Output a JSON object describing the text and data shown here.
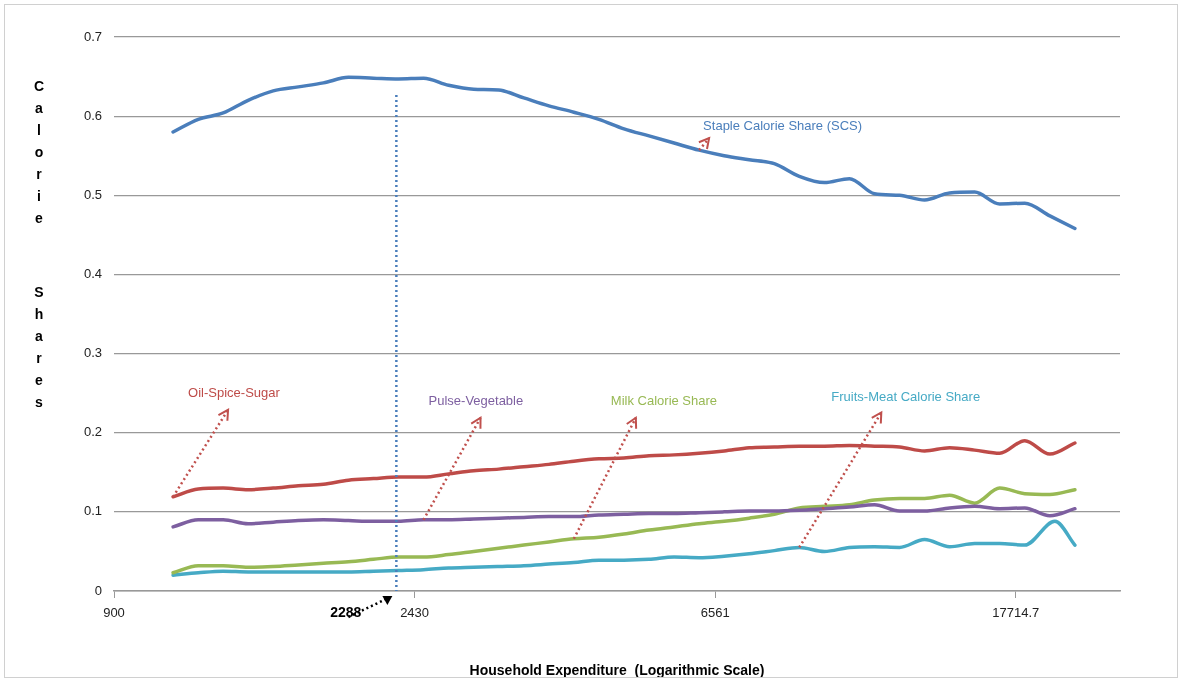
{
  "chart_data": {
    "type": "line",
    "xlabel": "Household Expenditure  (Logarithmic Scale)",
    "ylabel": "Calorie Shares",
    "log": "x",
    "xlim": [
      900,
      25000
    ],
    "xticks": [
      900,
      2430,
      6561,
      17714.7
    ],
    "ylim": [
      0,
      0.7
    ],
    "yticks": [
      0,
      0.1,
      0.2,
      0.3,
      0.4,
      0.5,
      0.6,
      0.7
    ],
    "grid": "y",
    "legend": false,
    "marker": "none",
    "line_style": "solid",
    "x": [
      1094,
      1189,
      1291,
      1402,
      1523,
      1655,
      1798,
      1953,
      2121,
      2304,
      2503,
      2719,
      2954,
      3209,
      3486,
      3787,
      4113,
      4468,
      4854,
      5273,
      5728,
      6222,
      6759,
      7342,
      7976,
      8664,
      9412,
      10224,
      11107,
      12065,
      13106,
      14237,
      15466,
      16801,
      18251,
      19826,
      21537
    ],
    "series": [
      {
        "name": "Staple Calorie Share (SCS)",
        "color": "#4a7ebb",
        "values": [
          0.58,
          0.596,
          0.604,
          0.62,
          0.632,
          0.637,
          0.642,
          0.649,
          0.648,
          0.647,
          0.648,
          0.639,
          0.634,
          0.633,
          0.623,
          0.613,
          0.605,
          0.596,
          0.584,
          0.575,
          0.566,
          0.557,
          0.55,
          0.545,
          0.54,
          0.524,
          0.516,
          0.521,
          0.502,
          0.5,
          0.494,
          0.503,
          0.504,
          0.489,
          0.49,
          0.474,
          0.458
        ]
      },
      {
        "name": "Oil-Spice-Sugar",
        "color": "#be4b48",
        "values": [
          0.119,
          0.129,
          0.13,
          0.128,
          0.13,
          0.133,
          0.135,
          0.14,
          0.142,
          0.144,
          0.144,
          0.148,
          0.152,
          0.154,
          0.157,
          0.16,
          0.164,
          0.167,
          0.168,
          0.171,
          0.172,
          0.174,
          0.177,
          0.181,
          0.182,
          0.183,
          0.183,
          0.184,
          0.183,
          0.182,
          0.177,
          0.181,
          0.178,
          0.174,
          0.19,
          0.173,
          0.187
        ]
      },
      {
        "name": "Pulse-Vegetable",
        "color": "#7d5fa0",
        "values": [
          0.081,
          0.09,
          0.09,
          0.085,
          0.087,
          0.089,
          0.09,
          0.089,
          0.088,
          0.088,
          0.09,
          0.09,
          0.091,
          0.092,
          0.093,
          0.094,
          0.094,
          0.096,
          0.097,
          0.098,
          0.098,
          0.099,
          0.1,
          0.101,
          0.101,
          0.102,
          0.104,
          0.106,
          0.109,
          0.101,
          0.101,
          0.105,
          0.107,
          0.104,
          0.105,
          0.095,
          0.104
        ]
      },
      {
        "name": "Milk Calorie Share",
        "color": "#98b954",
        "values": [
          0.023,
          0.032,
          0.032,
          0.03,
          0.031,
          0.033,
          0.035,
          0.037,
          0.04,
          0.043,
          0.043,
          0.046,
          0.05,
          0.054,
          0.058,
          0.062,
          0.066,
          0.068,
          0.072,
          0.077,
          0.081,
          0.085,
          0.088,
          0.092,
          0.097,
          0.105,
          0.107,
          0.109,
          0.115,
          0.117,
          0.117,
          0.121,
          0.111,
          0.13,
          0.123,
          0.122,
          0.128
        ]
      },
      {
        "name": "Fruits-Meat Calorie Share",
        "color": "#46aac5",
        "x": [
          1094,
          1189,
          1291,
          1402,
          1523,
          1655,
          1798,
          1953,
          2121,
          2304,
          2503,
          2719,
          2954,
          3209,
          3486,
          3787,
          4113,
          4468,
          4854,
          5273,
          5728,
          6222,
          6759,
          7342,
          7976,
          8664,
          9412,
          10224,
          11107,
          12065,
          13106,
          14237,
          15466,
          16801,
          18251,
          20160,
          21537
        ],
        "values": [
          0.02,
          0.023,
          0.025,
          0.024,
          0.024,
          0.024,
          0.024,
          0.024,
          0.025,
          0.026,
          0.027,
          0.029,
          0.03,
          0.031,
          0.032,
          0.034,
          0.036,
          0.039,
          0.039,
          0.04,
          0.043,
          0.042,
          0.044,
          0.047,
          0.051,
          0.055,
          0.05,
          0.055,
          0.056,
          0.055,
          0.065,
          0.056,
          0.06,
          0.06,
          0.058,
          0.088,
          0.058
        ]
      }
    ],
    "ref_lines": [
      {
        "axis": "x",
        "value": 2288,
        "label": "2288",
        "color": "#4a7ebb",
        "line_style": "dotted"
      }
    ]
  }
}
